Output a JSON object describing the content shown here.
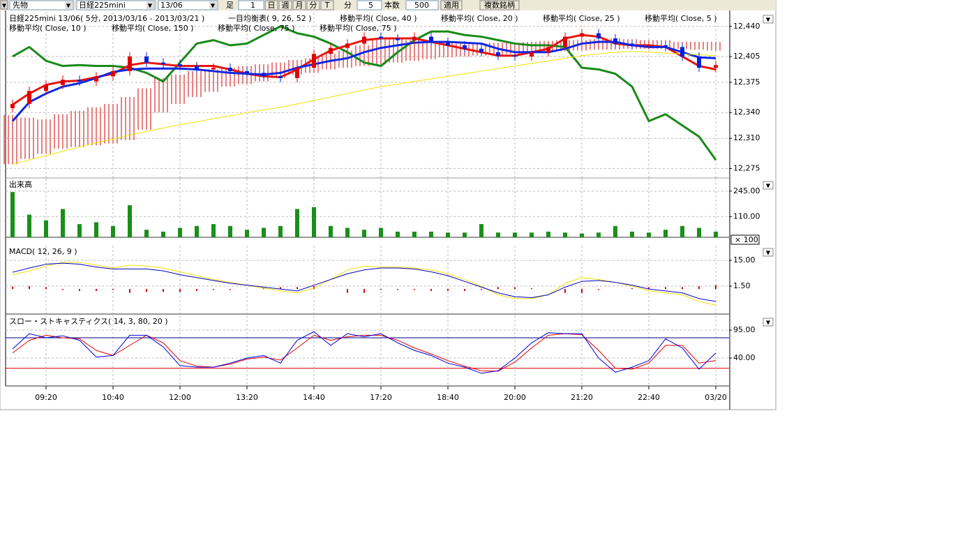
{
  "toolbar": {
    "market": "先物",
    "symbol": "日経225mini",
    "contract": "13/06",
    "bar_label": "足",
    "bar_count": "1",
    "buttons": [
      "日",
      "週",
      "月",
      "分",
      "T"
    ],
    "unit_label": "分",
    "interval": "5",
    "count_label": "本数",
    "count": "500",
    "apply": "適用",
    "multi": "複数銘柄"
  },
  "chart_data": [
    {
      "type": "candlestick",
      "legend": [
        [
          "日経225mini 13/06( 5分, 2013/03/16 - 2013/03/21 )",
          "一目均衡表( 9, 26, 52 )",
          "移動平均( Close, 40 )",
          "移動平均( Close, 20 )",
          "移動平均( Close, 25 )",
          "移動平均( Close, 5 )"
        ],
        [
          "移動平均( Close, 10 )",
          "移動平均( Close, 150 )",
          "移動平均( Close, 75 )",
          "移動平均( Close, 75 )"
        ]
      ],
      "up_color": "#e00000",
      "down_color": "#0020e0",
      "open": [
        12345,
        12350,
        12365,
        12372,
        12378,
        12376,
        12382,
        12388,
        12405,
        12398,
        12396,
        12394,
        12390,
        12392,
        12388,
        12386,
        12382,
        12380,
        12392,
        12408,
        12415,
        12420,
        12428,
        12426,
        12424,
        12428,
        12422,
        12418,
        12414,
        12410,
        12406,
        12405,
        12410,
        12416,
        12428,
        12432,
        12426,
        12420,
        12418,
        12418,
        12416,
        12405,
        12392
      ],
      "high": [
        12355,
        12370,
        12377,
        12383,
        12383,
        12387,
        12393,
        12410,
        12410,
        12403,
        12401,
        12399,
        12397,
        12397,
        12393,
        12391,
        12387,
        12397,
        12413,
        12420,
        12425,
        12433,
        12433,
        12431,
        12433,
        12433,
        12427,
        12423,
        12419,
        12415,
        12411,
        12415,
        12421,
        12433,
        12437,
        12437,
        12431,
        12425,
        12423,
        12423,
        12421,
        12410,
        12400
      ],
      "low": [
        12340,
        12345,
        12360,
        12367,
        12371,
        12371,
        12377,
        12383,
        12393,
        12391,
        12389,
        12385,
        12385,
        12383,
        12381,
        12377,
        12375,
        12375,
        12387,
        12403,
        12410,
        12415,
        12421,
        12419,
        12419,
        12417,
        12413,
        12409,
        12405,
        12401,
        12400,
        12400,
        12405,
        12411,
        12423,
        12421,
        12415,
        12413,
        12413,
        12411,
        12400,
        12387,
        12387
      ],
      "close": [
        12350,
        12365,
        12372,
        12378,
        12376,
        12382,
        12388,
        12405,
        12398,
        12396,
        12394,
        12390,
        12392,
        12388,
        12386,
        12382,
        12380,
        12392,
        12408,
        12415,
        12420,
        12428,
        12426,
        12424,
        12428,
        12422,
        12418,
        12414,
        12410,
        12406,
        12405,
        12410,
        12416,
        12428,
        12432,
        12426,
        12420,
        12418,
        12418,
        12416,
        12405,
        12392,
        12395
      ],
      "cloud": {
        "color": "#d00000",
        "span_a": [
          12337,
          12334,
          12332,
          12338,
          12342,
          12346,
          12350,
          12358,
          12368,
          12380,
          12384,
          12388,
          12390,
          12392,
          12394,
          12396,
          12398,
          12401,
          12403,
          12408,
          12412,
          12418,
          12426,
          12425,
          12424,
          12423,
          12422,
          12420,
          12420,
          12421,
          12421,
          12422,
          12423,
          12424,
          12424,
          12425,
          12426,
          12425,
          12424,
          12424,
          12422,
          12422,
          12422
        ],
        "span_b": [
          12280,
          12286,
          12292,
          12298,
          12300,
          12302,
          12304,
          12308,
          12320,
          12340,
          12350,
          12358,
          12364,
          12370,
          12373,
          12376,
          12380,
          12384,
          12386,
          12390,
          12392,
          12394,
          12396,
          12398,
          12400,
          12402,
          12404,
          12405,
          12406,
          12407,
          12408,
          12409,
          12410,
          12411,
          12412,
          12413,
          12413,
          12414,
          12414,
          12414,
          12414,
          12413,
          12412
        ]
      },
      "series": [
        {
          "color": "#178a17",
          "values": [
            12405,
            12416,
            12400,
            12394,
            12395,
            12394,
            12394,
            12392,
            12386,
            12376,
            12398,
            12420,
            12424,
            12418,
            12420,
            12430,
            12440,
            12432,
            12428,
            12420,
            12410,
            12398,
            12394,
            12410,
            12424,
            12434,
            12434,
            12430,
            12428,
            12424,
            12420,
            12418,
            12418,
            12416,
            12392,
            12390,
            12385,
            12370,
            12330,
            12338,
            12325,
            12312,
            12285
          ]
        },
        {
          "color": "#e8150f",
          "values": [
            12349,
            12362,
            12372,
            12376,
            12377,
            12381,
            12385,
            12395,
            12398,
            12396,
            12394,
            12394,
            12394,
            12390,
            12385,
            12382,
            12381,
            12390,
            12402,
            12412,
            12418,
            12424,
            12426,
            12426,
            12426,
            12422,
            12418,
            12414,
            12410,
            12406,
            12406,
            12410,
            12414,
            12426,
            12430,
            12428,
            12420,
            12418,
            12418,
            12416,
            12405,
            12394,
            12390
          ]
        },
        {
          "color": "#1027e0",
          "values": [
            12330,
            12352,
            12362,
            12370,
            12374,
            12380,
            12387,
            12390,
            12391,
            12391,
            12391,
            12390,
            12388,
            12386,
            12385,
            12384,
            12386,
            12392,
            12396,
            12400,
            12403,
            12410,
            12415,
            12418,
            12421,
            12422,
            12422,
            12421,
            12420,
            12414,
            12410,
            12410,
            12410,
            12414,
            12420,
            12422,
            12422,
            12418,
            12416,
            12416,
            12410,
            12404,
            12403
          ]
        },
        {
          "color": "#f0e000",
          "values": [
            12280,
            12285,
            12290,
            12295,
            12300,
            12305,
            12309,
            12314,
            12318,
            12322,
            12326,
            12329,
            12333,
            12336,
            12340,
            12343,
            12346,
            12350,
            12354,
            12358,
            12362,
            12366,
            12370,
            12373,
            12376,
            12379,
            12382,
            12385,
            12388,
            12391,
            12394,
            12397,
            12400,
            12403,
            12406,
            12408,
            12410,
            12411,
            12410,
            12409,
            12408,
            12407,
            12406
          ]
        }
      ],
      "ylim": [
        12264,
        12456
      ],
      "yticks": [
        {
          "value": 12440,
          "label": "12,440"
        },
        {
          "value": 12405,
          "label": "12,405"
        },
        {
          "value": 12375,
          "label": "12,375"
        },
        {
          "value": 12340,
          "label": "12,340"
        },
        {
          "value": 12310,
          "label": "12,310"
        },
        {
          "value": 12275,
          "label": "12,275"
        }
      ],
      "grid": true
    },
    {
      "type": "bar",
      "title": "出来高",
      "unit": "× 100",
      "color": "#1a8f1a",
      "values": [
        240,
        120,
        90,
        150,
        70,
        80,
        60,
        170,
        40,
        30,
        50,
        60,
        70,
        60,
        40,
        50,
        60,
        150,
        160,
        60,
        50,
        40,
        50,
        30,
        30,
        30,
        25,
        25,
        70,
        25,
        25,
        25,
        30,
        25,
        20,
        25,
        60,
        30,
        25,
        40,
        60,
        50,
        30
      ],
      "ylim": [
        0,
        311
      ],
      "yticks": [
        {
          "value": 245,
          "label": "245.00"
        },
        {
          "value": 110,
          "label": "110.00"
        }
      ],
      "grid": true
    },
    {
      "type": "line",
      "title": "MACD( 12, 26, 9 )",
      "histogram": {
        "color": "#d00000",
        "values": [
          1.3,
          1.5,
          1,
          -0.5,
          -1,
          -1,
          -0.5,
          -2,
          -1.5,
          -1.5,
          -1.5,
          -1,
          -0.5,
          -0.5,
          0,
          0.5,
          1,
          1,
          1.5,
          0,
          -2,
          -2,
          -0.5,
          -0.5,
          -0.5,
          -1,
          -1,
          -1,
          -0.5,
          1,
          1,
          0.5,
          0,
          -2,
          -2,
          -0.5,
          0,
          0.5,
          1,
          1,
          1,
          1.5,
          2
        ]
      },
      "series": [
        {
          "color": "#f0e000",
          "values": [
            7.5,
            9.5,
            12,
            14,
            14,
            12.5,
            11,
            12.5,
            12,
            11,
            9,
            7,
            5,
            3.5,
            2,
            0.5,
            -1,
            -2,
            0.5,
            5,
            10,
            12,
            11.5,
            11.5,
            11,
            10,
            8,
            5,
            1.5,
            -3,
            -5,
            -5,
            -3,
            3,
            6,
            5,
            3.5,
            1.5,
            -1,
            -2,
            -3,
            -6.5,
            -8.5
          ]
        },
        {
          "color": "#0000c0",
          "values": [
            8.8,
            11,
            13,
            13.5,
            13,
            11.5,
            10.5,
            10.5,
            10.5,
            9.5,
            7.5,
            6,
            4.5,
            3,
            2,
            1,
            0,
            -1,
            2,
            5,
            8,
            10,
            11,
            11,
            10.5,
            9,
            7,
            4,
            1,
            -2,
            -4,
            -4.5,
            -3,
            1,
            4,
            4.5,
            3.5,
            2,
            0,
            -1,
            -2,
            -5,
            -6.5
          ]
        }
      ],
      "ylim": [
        -13.1,
        22.7
      ],
      "yticks": [
        {
          "value": 15,
          "label": "15.00"
        },
        {
          "value": 1.5,
          "label": "1.50"
        }
      ],
      "grid": true
    },
    {
      "type": "line",
      "title": "スロー・ストキャスティクス( 14, 3, 80, 20 )",
      "categories": [
        null,
        null,
        "09:20",
        null,
        null,
        null,
        "10:40",
        null,
        null,
        null,
        "12:00",
        null,
        null,
        null,
        "13:20",
        null,
        null,
        null,
        "14:40",
        null,
        null,
        null,
        "17:20",
        null,
        null,
        null,
        "18:40",
        null,
        null,
        null,
        "20:00",
        null,
        null,
        null,
        "21:20",
        null,
        null,
        null,
        "22:40",
        null,
        null,
        null,
        "03/20"
      ],
      "levels": [
        {
          "value": 80,
          "color": "#000080"
        },
        {
          "value": 20,
          "color": "#e00000"
        }
      ],
      "series": [
        {
          "color": "#e00000",
          "values": [
            50,
            75,
            85,
            80,
            78,
            55,
            45,
            65,
            85,
            70,
            35,
            24,
            22,
            28,
            38,
            42,
            36,
            60,
            85,
            75,
            82,
            85,
            85,
            75,
            60,
            48,
            35,
            24,
            15,
            14,
            32,
            60,
            85,
            88,
            86,
            55,
            20,
            18,
            30,
            65,
            65,
            30,
            35
          ]
        },
        {
          "color": "#0000e0",
          "values": [
            58,
            88,
            80,
            84,
            75,
            42,
            45,
            85,
            85,
            62,
            25,
            22,
            22,
            30,
            40,
            45,
            30,
            75,
            92,
            65,
            88,
            82,
            88,
            70,
            55,
            45,
            30,
            22,
            10,
            15,
            40,
            70,
            90,
            88,
            88,
            40,
            12,
            22,
            35,
            78,
            60,
            18,
            50
          ]
        }
      ],
      "ylim": [
        -15,
        124
      ],
      "yticks": [
        {
          "value": 95,
          "label": "95.00"
        },
        {
          "value": 40,
          "label": "40.00"
        }
      ],
      "grid": true
    }
  ]
}
